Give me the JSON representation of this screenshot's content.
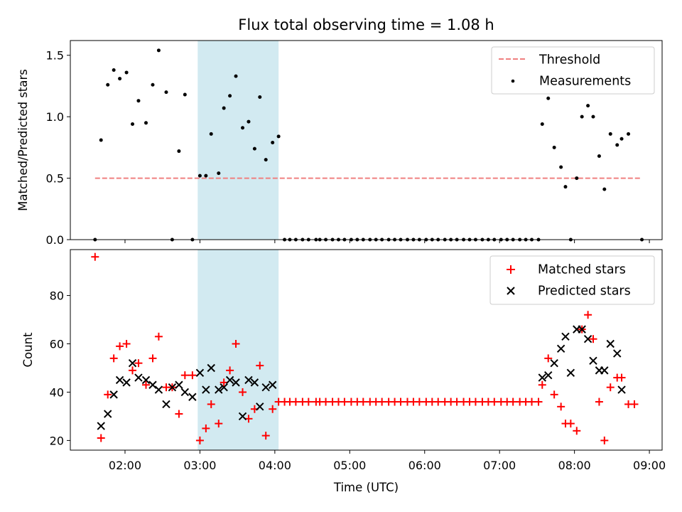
{
  "chart_data": [
    {
      "type": "scatter",
      "title": "Flux total observing time = 1.08 h",
      "xlabel": "",
      "ylabel": "Matched/Predicted stars",
      "xlim": [
        1.27,
        9.17
      ],
      "ylim": [
        0,
        1.62
      ],
      "yticks": [
        0.0,
        0.5,
        1.0,
        1.5
      ],
      "ytick_labels": [
        "0.0",
        "0.5",
        "1.0",
        "1.5"
      ],
      "highlight_span": [
        2.97,
        4.05
      ],
      "highlight_color": "#add8e6",
      "legend_position": "upper right",
      "threshold": {
        "name": "Threshold",
        "value": 0.5,
        "x_range": [
          1.6,
          8.9
        ],
        "color": "#f08080"
      },
      "series": [
        {
          "name": "Measurements",
          "color": "#000000",
          "marker": "point",
          "points": [
            [
              1.6,
              0.0
            ],
            [
              1.68,
              0.81
            ],
            [
              1.77,
              1.26
            ],
            [
              1.85,
              1.38
            ],
            [
              1.93,
              1.31
            ],
            [
              2.02,
              1.36
            ],
            [
              2.1,
              0.94
            ],
            [
              2.18,
              1.13
            ],
            [
              2.28,
              0.95
            ],
            [
              2.37,
              1.26
            ],
            [
              2.45,
              1.54
            ],
            [
              2.55,
              1.2
            ],
            [
              2.63,
              0.0
            ],
            [
              2.72,
              0.72
            ],
            [
              2.8,
              1.18
            ],
            [
              2.9,
              0.0
            ],
            [
              3.0,
              0.52
            ],
            [
              3.08,
              0.52
            ],
            [
              3.15,
              0.86
            ],
            [
              3.25,
              0.54
            ],
            [
              3.32,
              1.07
            ],
            [
              3.4,
              1.17
            ],
            [
              3.48,
              1.33
            ],
            [
              3.57,
              0.91
            ],
            [
              3.65,
              0.96
            ],
            [
              3.73,
              0.74
            ],
            [
              3.8,
              1.16
            ],
            [
              3.88,
              0.65
            ],
            [
              3.97,
              0.79
            ],
            [
              4.05,
              0.84
            ],
            [
              4.13,
              0.0
            ],
            [
              4.2,
              0.0
            ],
            [
              4.28,
              0.0
            ],
            [
              4.37,
              0.0
            ],
            [
              4.45,
              0.0
            ],
            [
              4.55,
              0.0
            ],
            [
              4.6,
              0.0
            ],
            [
              4.68,
              0.0
            ],
            [
              4.77,
              0.0
            ],
            [
              4.85,
              0.0
            ],
            [
              4.93,
              0.0
            ],
            [
              5.02,
              0.0
            ],
            [
              5.1,
              0.0
            ],
            [
              5.18,
              0.0
            ],
            [
              5.27,
              0.0
            ],
            [
              5.35,
              0.0
            ],
            [
              5.43,
              0.0
            ],
            [
              5.52,
              0.0
            ],
            [
              5.6,
              0.0
            ],
            [
              5.68,
              0.0
            ],
            [
              5.77,
              0.0
            ],
            [
              5.85,
              0.0
            ],
            [
              5.93,
              0.0
            ],
            [
              6.02,
              0.0
            ],
            [
              6.1,
              0.0
            ],
            [
              6.18,
              0.0
            ],
            [
              6.27,
              0.0
            ],
            [
              6.35,
              0.0
            ],
            [
              6.43,
              0.0
            ],
            [
              6.52,
              0.0
            ],
            [
              6.6,
              0.0
            ],
            [
              6.68,
              0.0
            ],
            [
              6.77,
              0.0
            ],
            [
              6.85,
              0.0
            ],
            [
              6.93,
              0.0
            ],
            [
              7.02,
              0.0
            ],
            [
              7.1,
              0.0
            ],
            [
              7.18,
              0.0
            ],
            [
              7.27,
              0.0
            ],
            [
              7.35,
              0.0
            ],
            [
              7.43,
              0.0
            ],
            [
              7.52,
              0.0
            ],
            [
              7.57,
              0.94
            ],
            [
              7.65,
              1.15
            ],
            [
              7.73,
              0.75
            ],
            [
              7.82,
              0.59
            ],
            [
              7.88,
              0.43
            ],
            [
              7.95,
              0.0
            ],
            [
              8.03,
              0.5
            ],
            [
              8.1,
              1.0
            ],
            [
              8.18,
              1.09
            ],
            [
              8.25,
              1.0
            ],
            [
              8.33,
              0.68
            ],
            [
              8.4,
              0.41
            ],
            [
              8.48,
              0.86
            ],
            [
              8.57,
              0.77
            ],
            [
              8.63,
              0.82
            ],
            [
              8.72,
              0.86
            ],
            [
              8.9,
              0.0
            ]
          ]
        }
      ]
    },
    {
      "type": "scatter",
      "title": "",
      "xlabel": "Time (UTC)",
      "ylabel": "Count",
      "xlim": [
        1.27,
        9.17
      ],
      "ylim": [
        16,
        99
      ],
      "xticks": [
        2,
        3,
        4,
        5,
        6,
        7,
        8,
        9
      ],
      "xtick_labels": [
        "02:00",
        "03:00",
        "04:00",
        "05:00",
        "06:00",
        "07:00",
        "08:00",
        "09:00"
      ],
      "yticks": [
        20,
        40,
        60,
        80
      ],
      "ytick_labels": [
        "20",
        "40",
        "60",
        "80"
      ],
      "highlight_span": [
        2.97,
        4.05
      ],
      "highlight_color": "#add8e6",
      "legend_position": "upper right",
      "series": [
        {
          "name": "Matched stars",
          "color": "#ff0000",
          "marker": "plus",
          "points": [
            [
              1.6,
              96
            ],
            [
              1.68,
              21
            ],
            [
              1.77,
              39
            ],
            [
              1.85,
              54
            ],
            [
              1.93,
              59
            ],
            [
              2.02,
              60
            ],
            [
              2.1,
              49
            ],
            [
              2.18,
              52
            ],
            [
              2.28,
              43
            ],
            [
              2.37,
              54
            ],
            [
              2.45,
              63
            ],
            [
              2.55,
              42
            ],
            [
              2.63,
              42
            ],
            [
              2.72,
              31
            ],
            [
              2.8,
              47
            ],
            [
              2.9,
              47
            ],
            [
              3.0,
              20
            ],
            [
              3.08,
              25
            ],
            [
              3.15,
              35
            ],
            [
              3.25,
              27
            ],
            [
              3.32,
              44
            ],
            [
              3.4,
              49
            ],
            [
              3.48,
              60
            ],
            [
              3.57,
              40
            ],
            [
              3.65,
              29
            ],
            [
              3.73,
              33
            ],
            [
              3.8,
              51
            ],
            [
              3.88,
              22
            ],
            [
              3.97,
              33
            ],
            [
              4.05,
              36
            ],
            [
              4.13,
              36
            ],
            [
              4.2,
              36
            ],
            [
              4.28,
              36
            ],
            [
              4.37,
              36
            ],
            [
              4.45,
              36
            ],
            [
              4.55,
              36
            ],
            [
              4.6,
              36
            ],
            [
              4.68,
              36
            ],
            [
              4.77,
              36
            ],
            [
              4.85,
              36
            ],
            [
              4.93,
              36
            ],
            [
              5.02,
              36
            ],
            [
              5.1,
              36
            ],
            [
              5.18,
              36
            ],
            [
              5.27,
              36
            ],
            [
              5.35,
              36
            ],
            [
              5.43,
              36
            ],
            [
              5.52,
              36
            ],
            [
              5.6,
              36
            ],
            [
              5.68,
              36
            ],
            [
              5.77,
              36
            ],
            [
              5.85,
              36
            ],
            [
              5.93,
              36
            ],
            [
              6.02,
              36
            ],
            [
              6.1,
              36
            ],
            [
              6.18,
              36
            ],
            [
              6.27,
              36
            ],
            [
              6.35,
              36
            ],
            [
              6.43,
              36
            ],
            [
              6.52,
              36
            ],
            [
              6.6,
              36
            ],
            [
              6.68,
              36
            ],
            [
              6.77,
              36
            ],
            [
              6.85,
              36
            ],
            [
              6.93,
              36
            ],
            [
              7.02,
              36
            ],
            [
              7.1,
              36
            ],
            [
              7.18,
              36
            ],
            [
              7.27,
              36
            ],
            [
              7.35,
              36
            ],
            [
              7.43,
              36
            ],
            [
              7.52,
              36
            ],
            [
              7.57,
              43
            ],
            [
              7.65,
              54
            ],
            [
              7.73,
              39
            ],
            [
              7.82,
              34
            ],
            [
              7.88,
              27
            ],
            [
              7.95,
              27
            ],
            [
              8.03,
              24
            ],
            [
              8.1,
              66
            ],
            [
              8.18,
              72
            ],
            [
              8.25,
              62
            ],
            [
              8.33,
              36
            ],
            [
              8.4,
              20
            ],
            [
              8.48,
              42
            ],
            [
              8.57,
              46
            ],
            [
              8.63,
              46
            ],
            [
              8.72,
              35
            ],
            [
              8.8,
              35
            ]
          ]
        },
        {
          "name": "Predicted stars",
          "color": "#000000",
          "marker": "x",
          "points": [
            [
              1.68,
              26
            ],
            [
              1.77,
              31
            ],
            [
              1.85,
              39
            ],
            [
              1.93,
              45
            ],
            [
              2.02,
              44
            ],
            [
              2.1,
              52
            ],
            [
              2.18,
              46
            ],
            [
              2.28,
              45
            ],
            [
              2.37,
              43
            ],
            [
              2.45,
              41
            ],
            [
              2.55,
              35
            ],
            [
              2.63,
              42
            ],
            [
              2.72,
              43
            ],
            [
              2.8,
              40
            ],
            [
              2.9,
              38
            ],
            [
              3.0,
              48
            ],
            [
              3.08,
              41
            ],
            [
              3.15,
              50
            ],
            [
              3.25,
              41
            ],
            [
              3.32,
              42
            ],
            [
              3.4,
              45
            ],
            [
              3.48,
              44
            ],
            [
              3.57,
              30
            ],
            [
              3.65,
              45
            ],
            [
              3.73,
              44
            ],
            [
              3.8,
              34
            ],
            [
              3.88,
              42
            ],
            [
              3.97,
              43
            ],
            [
              7.57,
              46
            ],
            [
              7.65,
              47
            ],
            [
              7.73,
              52
            ],
            [
              7.82,
              58
            ],
            [
              7.88,
              63
            ],
            [
              7.95,
              48
            ],
            [
              8.03,
              66
            ],
            [
              8.1,
              66
            ],
            [
              8.18,
              62
            ],
            [
              8.25,
              53
            ],
            [
              8.33,
              49
            ],
            [
              8.4,
              49
            ],
            [
              8.48,
              60
            ],
            [
              8.57,
              56
            ],
            [
              8.63,
              41
            ]
          ]
        }
      ]
    }
  ]
}
